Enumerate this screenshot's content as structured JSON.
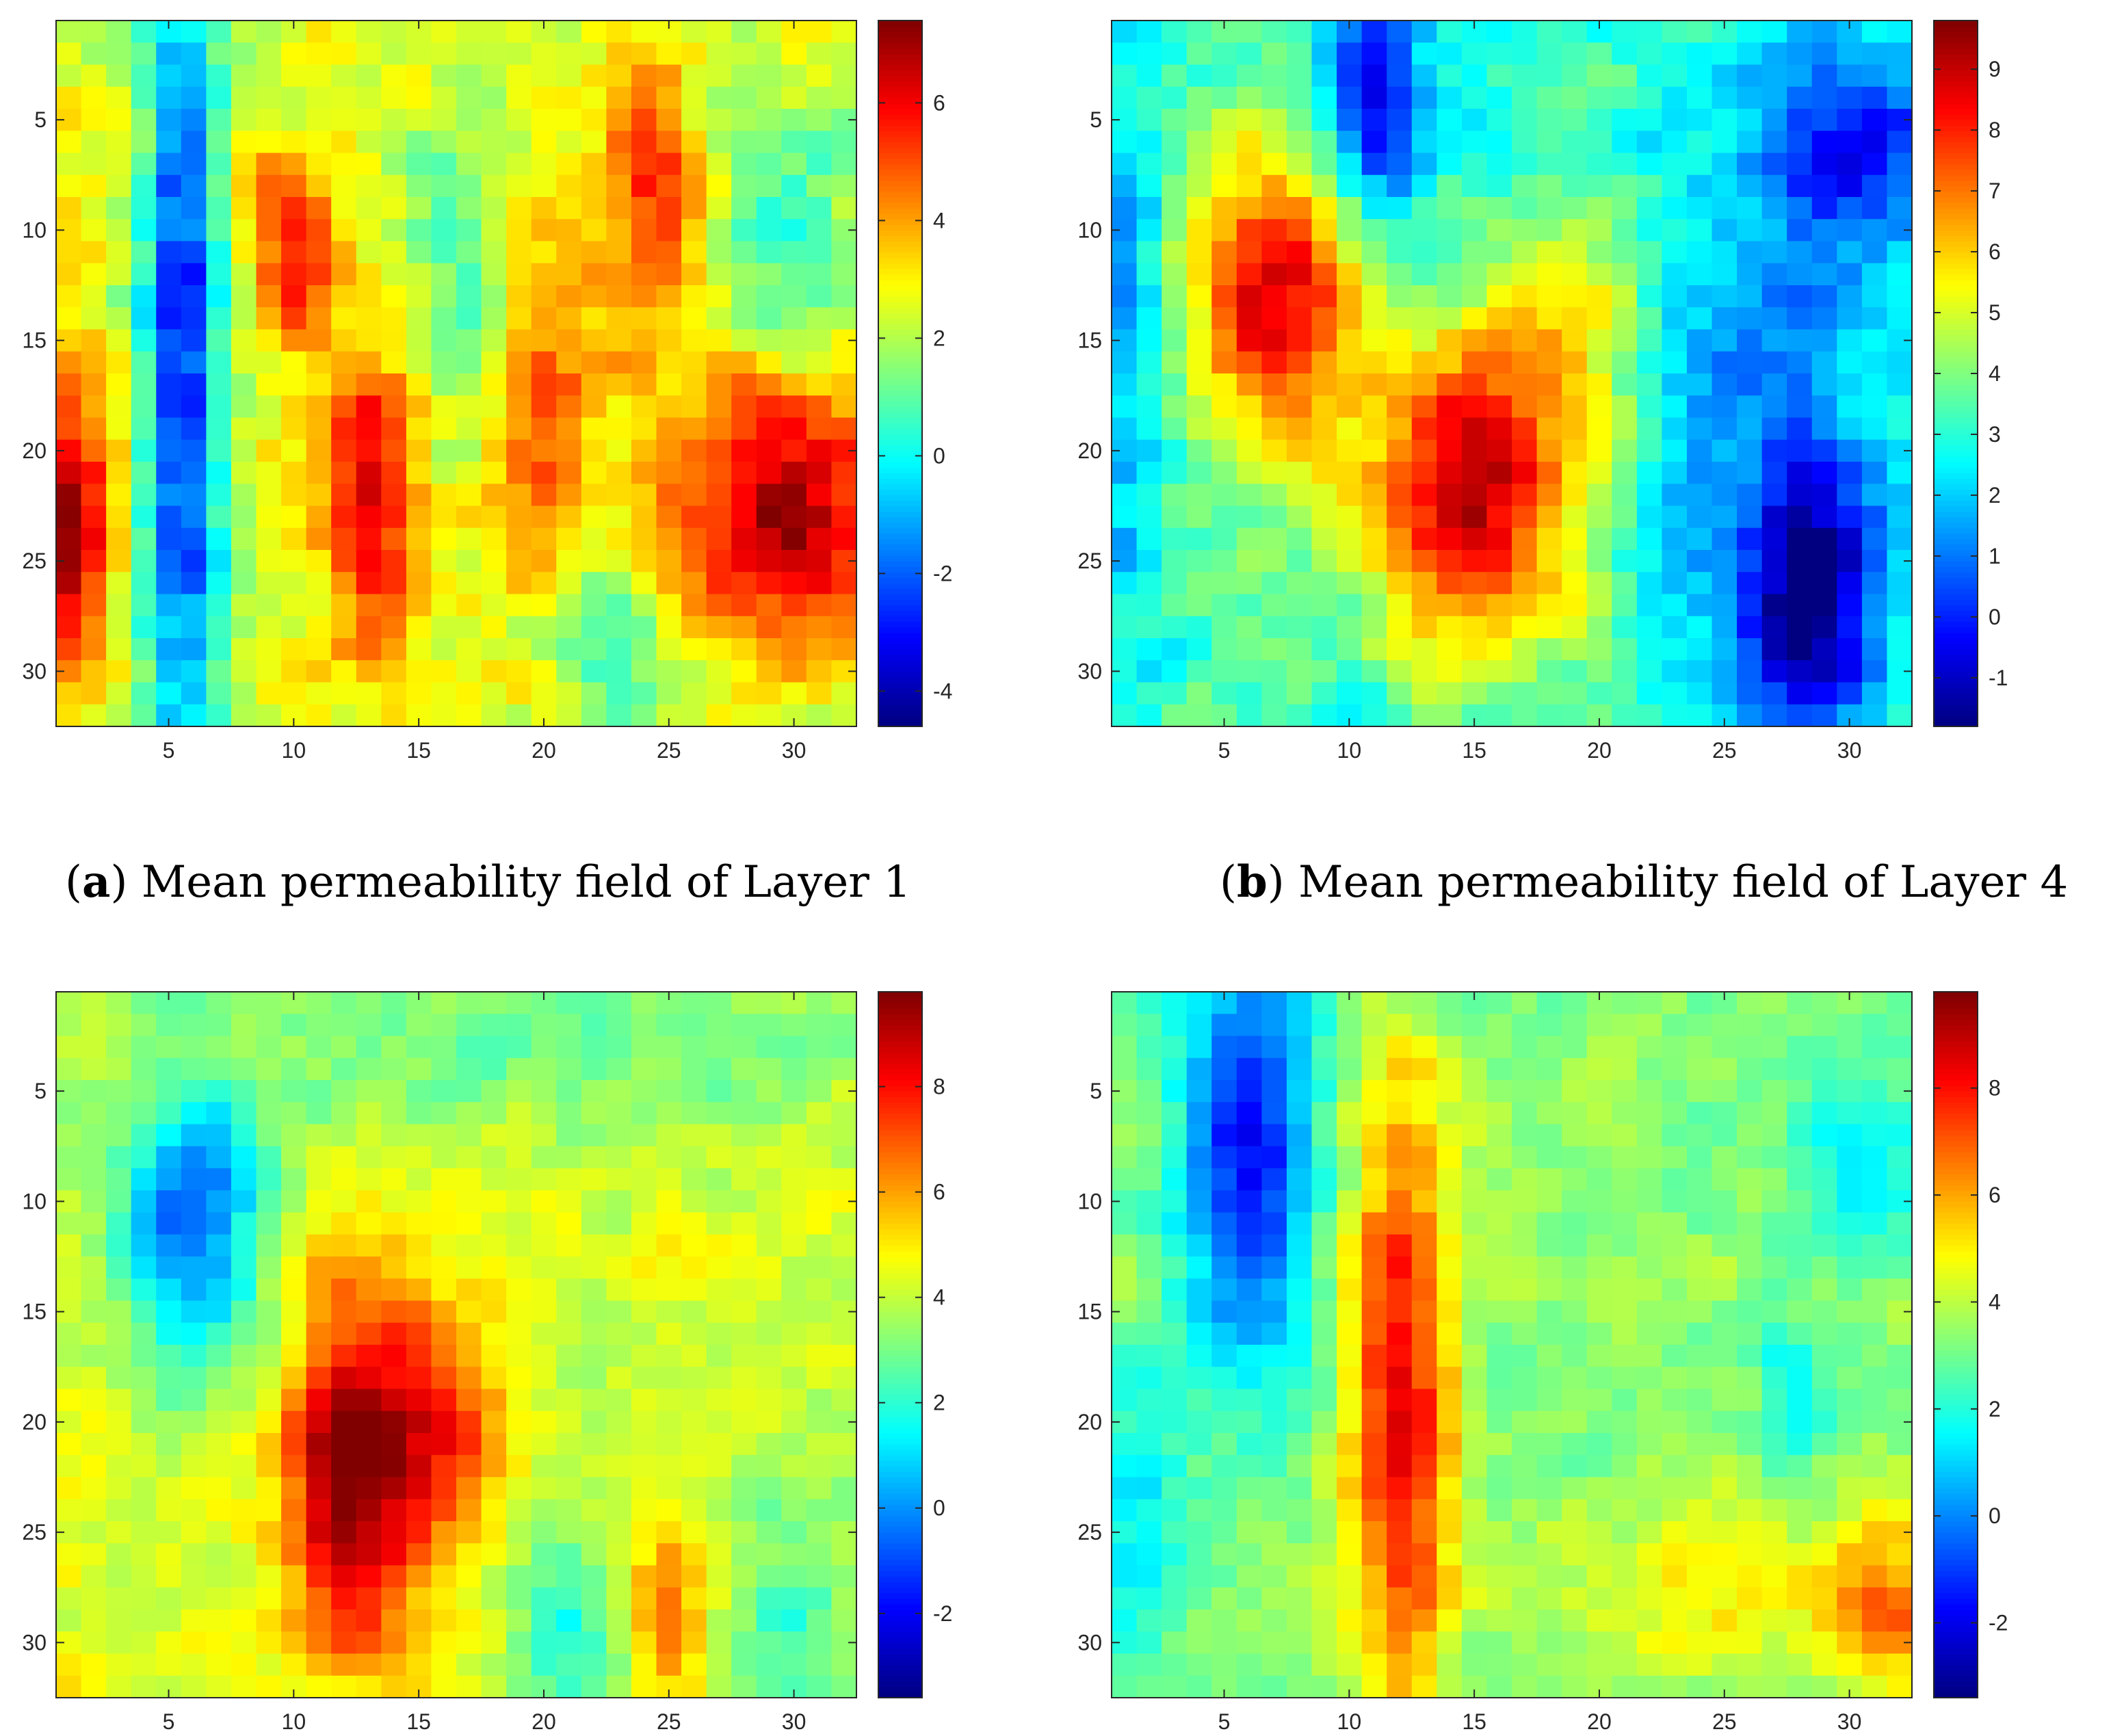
{
  "chart_data": [
    {
      "id": "a",
      "type": "heatmap",
      "grid_size": [
        32,
        32
      ],
      "colormap": "jet",
      "caption_letter": "a",
      "caption_text": "Mean permeability field of Layer 1",
      "clim": [
        -4.6,
        7.4
      ],
      "colorbar_ticks": [
        -4,
        -2,
        0,
        2,
        4,
        6
      ],
      "x_ticks": [
        5,
        10,
        15,
        20,
        25,
        30
      ],
      "y_ticks": [
        5,
        10,
        15,
        20,
        25,
        30
      ],
      "features": [
        {
          "r": 16,
          "c": 5.5,
          "sr": 14,
          "sc": 1.2,
          "a": -5.5
        },
        {
          "r": 24,
          "c": 1,
          "sr": 5,
          "sc": 1.3,
          "a": 4
        },
        {
          "r": 22,
          "c": 13,
          "sr": 5,
          "sc": 1.3,
          "a": 3.5
        },
        {
          "r": 11,
          "c": 10,
          "sr": 3,
          "sc": 1.2,
          "a": 3
        },
        {
          "r": 18,
          "c": 19.5,
          "sr": 6,
          "sc": 1.5,
          "a": 2.5
        },
        {
          "r": 8,
          "c": 24.5,
          "sr": 5,
          "sc": 1.2,
          "a": 3
        },
        {
          "r": 23,
          "c": 29.5,
          "sr": 4,
          "sc": 3,
          "a": 4.5
        },
        {
          "r": 12,
          "c": 17,
          "sr": 5,
          "sc": 2,
          "a": -2
        },
        {
          "r": 29,
          "c": 23,
          "sr": 3,
          "sc": 2,
          "a": -2
        },
        {
          "r": 10,
          "c": 30,
          "sr": 4,
          "sc": 2,
          "a": -2
        }
      ],
      "base_value": 2.6,
      "noise_amplitude": 1.1,
      "seed": 11
    },
    {
      "id": "b",
      "type": "heatmap",
      "grid_size": [
        32,
        32
      ],
      "colormap": "jet",
      "caption_letter": "b",
      "caption_text": "Mean permeability field of Layer 4",
      "clim": [
        -1.8,
        9.8
      ],
      "colorbar_ticks": [
        -1,
        0,
        1,
        2,
        3,
        4,
        5,
        6,
        7,
        8,
        9
      ],
      "x_ticks": [
        5,
        10,
        15,
        20,
        25,
        30
      ],
      "y_ticks": [
        5,
        10,
        15,
        20,
        25,
        30
      ],
      "features": [
        {
          "r": 13,
          "c": 7,
          "sr": 5,
          "sc": 2.5,
          "a": 5.5
        },
        {
          "r": 22,
          "c": 15,
          "sr": 5,
          "sc": 3,
          "a": 6
        },
        {
          "r": 4,
          "c": 11,
          "sr": 3.5,
          "sc": 1.5,
          "a": -4.5
        },
        {
          "r": 27,
          "c": 28.5,
          "sr": 4,
          "sc": 2,
          "a": -4
        },
        {
          "r": 6,
          "c": 30,
          "sr": 3,
          "sc": 3,
          "a": -3
        },
        {
          "r": 20,
          "c": 27,
          "sr": 10,
          "sc": 4,
          "a": -2
        },
        {
          "r": 16,
          "c": 1,
          "sr": 10,
          "sc": 1.5,
          "a": -2
        },
        {
          "r": 14,
          "c": 19,
          "sr": 4,
          "sc": 2,
          "a": 2
        }
      ],
      "base_value": 3.3,
      "noise_amplitude": 1.0,
      "seed": 23
    },
    {
      "id": "c",
      "type": "heatmap",
      "grid_size": [
        32,
        32
      ],
      "colormap": "jet",
      "clim": [
        -3.6,
        9.8
      ],
      "colorbar_ticks": [
        -2,
        0,
        2,
        4,
        6,
        8
      ],
      "x_ticks": [
        5,
        10,
        15,
        20,
        25,
        30
      ],
      "y_ticks": [
        5,
        10,
        15,
        20,
        25,
        30
      ],
      "features": [
        {
          "r": 22,
          "c": 12.5,
          "sr": 6,
          "sc": 2,
          "a": 6
        },
        {
          "r": 11,
          "c": 6,
          "sr": 5,
          "sc": 2,
          "a": -5
        },
        {
          "r": 20,
          "c": 16.5,
          "sr": 4,
          "sc": 1.5,
          "a": 2.5
        },
        {
          "r": 28,
          "c": 25,
          "sr": 3,
          "sc": 1,
          "a": 2.5
        },
        {
          "r": 29,
          "c": 21,
          "sr": 3,
          "sc": 1.5,
          "a": -2.5
        },
        {
          "r": 28,
          "c": 30,
          "sr": 4,
          "sc": 2,
          "a": -2
        },
        {
          "r": 3,
          "c": 20,
          "sr": 3,
          "sc": 8,
          "a": -1.5
        }
      ],
      "base_value": 4.2,
      "noise_amplitude": 0.9,
      "seed": 37
    },
    {
      "id": "d",
      "type": "heatmap",
      "grid_size": [
        32,
        32
      ],
      "colormap": "jet",
      "clim": [
        -3.4,
        9.8
      ],
      "colorbar_ticks": [
        -2,
        0,
        2,
        4,
        6,
        8
      ],
      "x_ticks": [
        5,
        10,
        15,
        20,
        25,
        30
      ],
      "y_ticks": [
        5,
        10,
        15,
        20,
        25,
        30
      ],
      "features": [
        {
          "r": 19,
          "c": 12,
          "sr": 10,
          "sc": 1.5,
          "a": 5
        },
        {
          "r": 8,
          "c": 6,
          "sr": 7,
          "sc": 2,
          "a": -5
        },
        {
          "r": 28,
          "c": 31.5,
          "sr": 3,
          "sc": 1.5,
          "a": 3
        },
        {
          "r": 24,
          "c": 1.5,
          "sr": 5,
          "sc": 1.3,
          "a": -2
        },
        {
          "r": 8,
          "c": 31,
          "sr": 3,
          "sc": 2,
          "a": -2.5
        },
        {
          "r": 19,
          "c": 27.5,
          "sr": 3,
          "sc": 1,
          "a": -2
        },
        {
          "r": 28,
          "c": 25,
          "sr": 3,
          "sc": 4,
          "a": 1.5
        }
      ],
      "base_value": 3.4,
      "noise_amplitude": 0.9,
      "seed": 53
    }
  ]
}
